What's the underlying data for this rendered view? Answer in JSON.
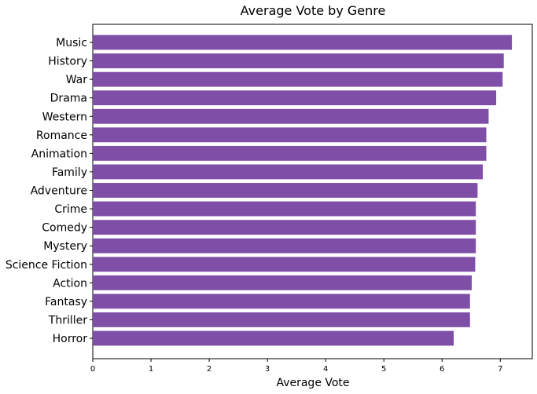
{
  "chart_data": {
    "type": "bar",
    "orientation": "horizontal",
    "title": "Average Vote by Genre",
    "xlabel": "Average Vote",
    "ylabel": "",
    "xlim": [
      0,
      7.55
    ],
    "xticks": [
      "0",
      "1",
      "2",
      "3",
      "4",
      "5",
      "6",
      "7"
    ],
    "grid": false,
    "bar_color": "#7f4fa8",
    "categories": [
      "Music",
      "History",
      "War",
      "Drama",
      "Western",
      "Romance",
      "Animation",
      "Family",
      "Adventure",
      "Crime",
      "Comedy",
      "Mystery",
      "Science Fiction",
      "Action",
      "Fantasy",
      "Thriller",
      "Horror"
    ],
    "values": [
      7.2,
      7.06,
      7.04,
      6.93,
      6.8,
      6.76,
      6.76,
      6.7,
      6.61,
      6.58,
      6.58,
      6.58,
      6.57,
      6.51,
      6.48,
      6.48,
      6.2
    ]
  }
}
